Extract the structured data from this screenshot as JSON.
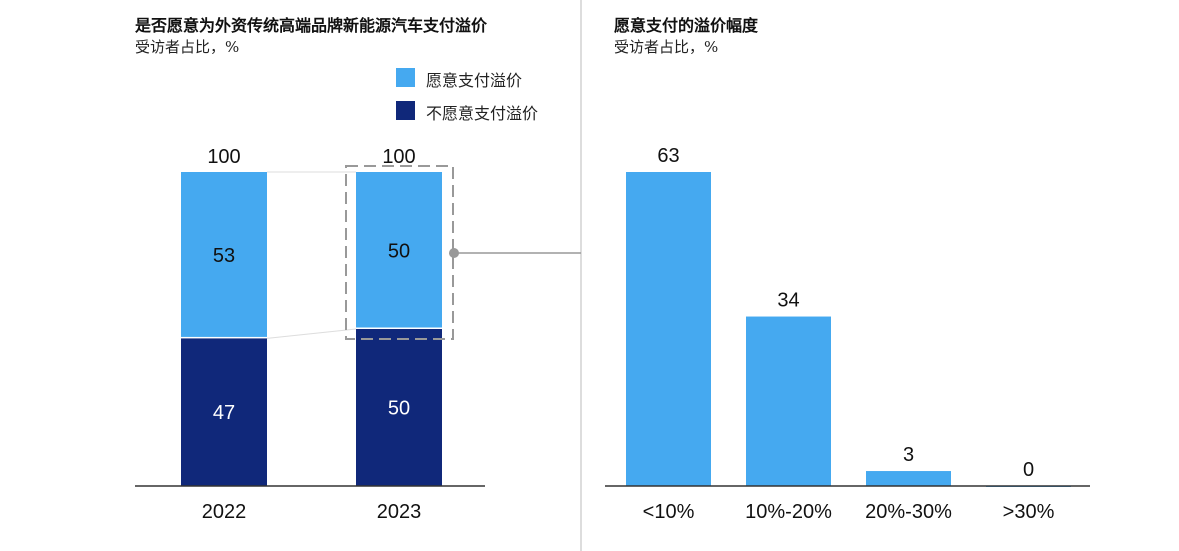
{
  "colors": {
    "willing": "#45a9f0",
    "unwilling": "#10287a"
  },
  "chart_data": [
    {
      "type": "bar",
      "stacked": true,
      "title": "是否愿意为外资传统高端品牌新能源汽车支付溢价",
      "subtitle": "受访者占比，%",
      "categories": [
        "2022",
        "2023"
      ],
      "totals": [
        "100",
        "100"
      ],
      "series": [
        {
          "name": "不愿意支付溢价",
          "values": [
            47,
            50
          ]
        },
        {
          "name": "愿意支付溢价",
          "values": [
            53,
            50
          ]
        }
      ],
      "legend": [
        "愿意支付溢价",
        "不愿意支付溢价"
      ],
      "legend_position": "top-right",
      "ylim": [
        0,
        100
      ],
      "grid": false
    },
    {
      "type": "bar",
      "title": "愿意支付的溢价幅度",
      "subtitle": "受访者占比，%",
      "categories": [
        "<10%",
        "10%-20%",
        "20%-30%",
        ">30%"
      ],
      "values": [
        63,
        34,
        3,
        0
      ],
      "ylim": [
        0,
        63
      ],
      "grid": false
    }
  ]
}
